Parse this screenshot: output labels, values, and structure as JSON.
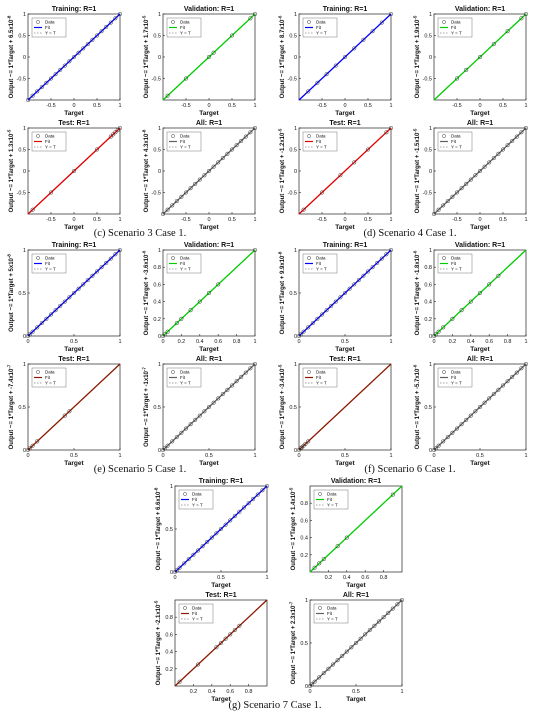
{
  "labels": {
    "data": "Data",
    "fit": "Fit",
    "ident": "Y = T",
    "target": "Target"
  },
  "captions": {
    "c": "(c) Scenario 3 Case 1.",
    "d": "(d) Scenario 4 Case 1.",
    "e": "(e) Scenario 5 Case 1.",
    "f": "(f) Scenario 6 Case 1.",
    "g": "(g) Scenario 7 Case 1."
  },
  "colors": {
    "training": "#0000ff",
    "validation": "#00cc00",
    "test_red": "#e00000",
    "test_brown": "#8b1a00",
    "all": "#606060",
    "ident": "#888888"
  },
  "chart_data": [
    {
      "id": "c-training",
      "type": "scatter",
      "title": "Training: R=1",
      "ylabel": "Output ~= 1*Target + 6.5×10^-8",
      "y_text": "Output ~= 1*Target + 6.5x10",
      "y_exp": "-8",
      "xlabel": "Target",
      "xlim": [
        -1,
        1
      ],
      "ylim": [
        -1,
        1
      ],
      "xticks": [
        -0.5,
        0,
        0.5,
        1
      ],
      "yticks": [
        -0.5,
        0,
        0.5,
        1
      ],
      "fit_color": "training",
      "points": [
        -1,
        -0.9,
        -0.8,
        -0.7,
        -0.6,
        -0.5,
        -0.4,
        -0.3,
        -0.2,
        -0.1,
        0,
        0.1,
        0.2,
        0.3,
        0.4,
        0.5,
        0.6,
        0.7,
        0.8,
        0.9,
        1
      ]
    },
    {
      "id": "c-validation",
      "type": "scatter",
      "title": "Validation: R=1",
      "ylabel": "Output ~= 1*Target + 1.7×10^-5",
      "y_text": "Output ~= 1*Target + 1.7x10",
      "y_exp": "-5",
      "xlabel": "Target",
      "xlim": [
        -1,
        1
      ],
      "ylim": [
        -1,
        1
      ],
      "xticks": [
        -0.5,
        0,
        0.5,
        1
      ],
      "yticks": [
        -0.5,
        0,
        0.5,
        1
      ],
      "fit_color": "validation",
      "points": [
        -0.9,
        -0.5,
        0,
        0.1,
        0.5,
        0.9,
        1
      ]
    },
    {
      "id": "c-test",
      "type": "scatter",
      "title": "Test: R=1",
      "ylabel": "Output ~= 1*Target + 1.3×10^-5",
      "y_text": "Output ~= 1*Target + 1.3x10",
      "y_exp": "-5",
      "xlabel": "Target",
      "xlim": [
        -1,
        1
      ],
      "ylim": [
        -1,
        1
      ],
      "xticks": [
        -0.5,
        0,
        0.5,
        1
      ],
      "yticks": [
        -0.5,
        0,
        0.5,
        1
      ],
      "fit_color": "test_red",
      "points": [
        -0.9,
        -0.5,
        0,
        0.5,
        0.8,
        0.85,
        0.9,
        0.95,
        1
      ]
    },
    {
      "id": "c-all",
      "type": "scatter",
      "title": "All: R=1",
      "ylabel": "Output ~= 1*Target + 4.3×10^-8",
      "y_text": "Output ~= 1*Target + 4.3x10",
      "y_exp": "-8",
      "xlabel": "Target",
      "xlim": [
        -1,
        1
      ],
      "ylim": [
        -1,
        1
      ],
      "xticks": [
        -0.5,
        0,
        0.5,
        1
      ],
      "yticks": [
        -0.5,
        0,
        0.5,
        1
      ],
      "fit_color": "all",
      "points": [
        -1,
        -0.9,
        -0.8,
        -0.7,
        -0.6,
        -0.5,
        -0.4,
        -0.3,
        -0.2,
        -0.1,
        0,
        0.1,
        0.2,
        0.3,
        0.4,
        0.5,
        0.6,
        0.7,
        0.8,
        0.9,
        1
      ]
    },
    {
      "id": "d-training",
      "type": "scatter",
      "title": "Training: R=1",
      "ylabel": "Output ~= 1*Target + 8.7×10^-6",
      "y_text": "Output ~= 1*Target + 8.7x10",
      "y_exp": "-6",
      "xlabel": "Target",
      "xlim": [
        -1,
        1
      ],
      "ylim": [
        -1,
        1
      ],
      "xticks": [
        -0.5,
        0,
        0.5,
        1
      ],
      "yticks": [
        -0.5,
        0,
        0.5,
        1
      ],
      "fit_color": "training",
      "points": [
        -0.8,
        -0.6,
        -0.4,
        -0.2,
        0,
        0.2,
        0.4,
        0.6,
        0.8,
        1
      ]
    },
    {
      "id": "d-validation",
      "type": "scatter",
      "title": "Validation: R=1",
      "ylabel": "Output ~= 1*Target + 1.9×10^-5",
      "y_text": "Output ~= 1*Target + 1.9x10",
      "y_exp": "-5",
      "xlabel": "Target",
      "xlim": [
        -1,
        1
      ],
      "ylim": [
        -1,
        1
      ],
      "xticks": [
        -0.5,
        0,
        0.5,
        1
      ],
      "yticks": [
        -0.5,
        0,
        0.5,
        1
      ],
      "fit_color": "validation",
      "points": [
        -0.5,
        -0.3,
        0,
        0.3,
        0.6,
        0.9,
        1
      ]
    },
    {
      "id": "d-test",
      "type": "scatter",
      "title": "Test: R=1",
      "ylabel": "Output ~= 1*Target + -1.2×10^-5",
      "y_text": "Output ~= 1*Target + -1.2x10",
      "y_exp": "-5",
      "xlabel": "Target",
      "xlim": [
        -1,
        1
      ],
      "ylim": [
        -1,
        1
      ],
      "xticks": [
        -0.5,
        0,
        0.5,
        1
      ],
      "yticks": [
        -0.5,
        0,
        0.5,
        1
      ],
      "fit_color": "test_red",
      "points": [
        -0.9,
        -0.5,
        -0.1,
        0.2,
        0.5,
        0.9,
        1
      ]
    },
    {
      "id": "d-all",
      "type": "scatter",
      "title": "All: R=1",
      "ylabel": "Output ~= 1*Target + -1.5×10^-5",
      "y_text": "Output ~= 1*Target + -1.5x10",
      "y_exp": "-5",
      "xlabel": "Target",
      "xlim": [
        -1,
        1
      ],
      "ylim": [
        -1,
        1
      ],
      "xticks": [
        -0.5,
        0,
        0.5,
        1
      ],
      "yticks": [
        -0.5,
        0,
        0.5,
        1
      ],
      "fit_color": "all",
      "points": [
        -1,
        -0.9,
        -0.8,
        -0.7,
        -0.6,
        -0.5,
        -0.4,
        -0.3,
        -0.2,
        -0.1,
        0,
        0.1,
        0.2,
        0.3,
        0.4,
        0.5,
        0.6,
        0.7,
        0.8,
        0.9,
        1
      ]
    },
    {
      "id": "e-training",
      "type": "scatter",
      "title": "Training: R=1",
      "ylabel": "Output ~= 1*Target + 5×10^-8",
      "y_text": "Output ~= 1*Target + 5x10",
      "y_exp": "-8",
      "xlabel": "Target",
      "xlim": [
        0,
        1
      ],
      "ylim": [
        0,
        1
      ],
      "xticks": [
        0,
        0.5,
        1
      ],
      "yticks": [
        0,
        0.5,
        1
      ],
      "fit_color": "training",
      "points": [
        0,
        0.02,
        0.05,
        0.1,
        0.15,
        0.2,
        0.25,
        0.3,
        0.35,
        0.4,
        0.45,
        0.5,
        0.55,
        0.6,
        0.65,
        0.7,
        0.75,
        0.8,
        0.85,
        0.9,
        0.95,
        1
      ]
    },
    {
      "id": "e-validation",
      "type": "scatter",
      "title": "Validation: R=1",
      "ylabel": "Output ~= 1*Target + -3.6×10^-6",
      "y_text": "Output ~= 1*Target + -3.6x10",
      "y_exp": "-6",
      "xlabel": "Target",
      "xlim": [
        0,
        1
      ],
      "ylim": [
        0,
        1
      ],
      "xticks": [
        0,
        0.2,
        0.4,
        0.6,
        0.8,
        1
      ],
      "yticks": [
        0,
        0.2,
        0.4,
        0.6,
        0.8,
        1
      ],
      "fit_color": "validation",
      "points": [
        0,
        0.02,
        0.05,
        0.15,
        0.2,
        0.3,
        0.4,
        0.5,
        0.6,
        1
      ]
    },
    {
      "id": "e-test",
      "type": "scatter",
      "title": "Test: R=1",
      "ylabel": "Output ~= 1*Target + -7.4×10^-7",
      "y_text": "Output ~= 1*Target + -7.4x10",
      "y_exp": "-7",
      "xlabel": "Target",
      "xlim": [
        0,
        1
      ],
      "ylim": [
        0,
        1
      ],
      "xticks": [
        0,
        0.5,
        1
      ],
      "yticks": [
        0,
        0.5,
        1
      ],
      "fit_color": "test_brown",
      "points": [
        0,
        0.02,
        0.05,
        0.1,
        0.4,
        0.45
      ]
    },
    {
      "id": "e-all",
      "type": "scatter",
      "title": "All: R=1",
      "ylabel": "Output ~= 1*Target + -1×10^-7",
      "y_text": "Output ~= 1*Target + -1x10",
      "y_exp": "-7",
      "xlabel": "Target",
      "xlim": [
        0,
        1
      ],
      "ylim": [
        0,
        1
      ],
      "xticks": [
        0,
        0.5,
        1
      ],
      "yticks": [
        0,
        0.5,
        1
      ],
      "fit_color": "all",
      "points": [
        0,
        0.02,
        0.05,
        0.1,
        0.15,
        0.2,
        0.25,
        0.3,
        0.35,
        0.4,
        0.45,
        0.5,
        0.55,
        0.6,
        0.65,
        0.7,
        0.75,
        0.8,
        0.85,
        0.9,
        0.95,
        1
      ]
    },
    {
      "id": "f-training",
      "type": "scatter",
      "title": "Training: R=1",
      "ylabel": "Output ~= 1*Target + 9.9×10^-8",
      "y_text": "Output ~= 1*Target + 9.9x10",
      "y_exp": "-8",
      "xlabel": "Target",
      "xlim": [
        0,
        1
      ],
      "ylim": [
        0,
        1
      ],
      "xticks": [
        0,
        0.5,
        1
      ],
      "yticks": [
        0,
        0.5,
        1
      ],
      "fit_color": "training",
      "points": [
        0,
        0.02,
        0.05,
        0.1,
        0.15,
        0.2,
        0.25,
        0.3,
        0.35,
        0.4,
        0.45,
        0.5,
        0.55,
        0.6,
        0.65,
        0.7,
        0.75,
        0.8,
        0.85,
        0.9,
        0.95,
        1
      ]
    },
    {
      "id": "f-validation",
      "type": "scatter",
      "title": "Validation: R=1",
      "ylabel": "Output ~= 1*Target + -1.8×10^-6",
      "y_text": "Output ~= 1*Target + -1.8x10",
      "y_exp": "-6",
      "xlabel": "Target",
      "xlim": [
        0,
        1
      ],
      "ylim": [
        0,
        1
      ],
      "xticks": [
        0,
        0.2,
        0.4,
        0.6,
        0.8,
        1
      ],
      "yticks": [
        0,
        0.2,
        0.4,
        0.6,
        0.8,
        1
      ],
      "fit_color": "validation",
      "points": [
        0,
        0.02,
        0.05,
        0.1,
        0.2,
        0.3,
        0.4,
        0.5,
        0.6,
        0.7
      ]
    },
    {
      "id": "f-test",
      "type": "scatter",
      "title": "Test: R=1",
      "ylabel": "Output ~= 1*Target + -3.4×10^-5",
      "y_text": "Output ~= 1*Target + -3.4x10",
      "y_exp": "-5",
      "xlabel": "Target",
      "xlim": [
        0,
        1
      ],
      "ylim": [
        0,
        1
      ],
      "xticks": [
        0,
        0.5,
        1
      ],
      "yticks": [
        0,
        0.5,
        1
      ],
      "fit_color": "test_brown",
      "points": [
        0,
        0.02,
        0.03,
        0.05,
        0.07,
        0.1
      ]
    },
    {
      "id": "f-all",
      "type": "scatter",
      "title": "All: R=1",
      "ylabel": "Output ~= 1*Target + -5.7×10^-6",
      "y_text": "Output ~= 1*Target + -5.7x10",
      "y_exp": "-6",
      "xlabel": "Target",
      "xlim": [
        0,
        1
      ],
      "ylim": [
        0,
        1
      ],
      "xticks": [
        0,
        0.5,
        1
      ],
      "yticks": [
        0,
        0.5,
        1
      ],
      "fit_color": "all",
      "points": [
        0,
        0.02,
        0.05,
        0.1,
        0.15,
        0.2,
        0.25,
        0.3,
        0.35,
        0.4,
        0.45,
        0.5,
        0.55,
        0.6,
        0.65,
        0.7,
        0.75,
        0.8,
        0.85,
        0.9,
        0.95,
        1
      ]
    },
    {
      "id": "g-training",
      "type": "scatter",
      "title": "Training: R=1",
      "ylabel": "Output ~= 1*Target + 6.6×10^-8",
      "y_text": "Output ~= 1*Target + 6.6x10",
      "y_exp": "-8",
      "xlabel": "Target",
      "xlim": [
        0,
        1
      ],
      "ylim": [
        0,
        1
      ],
      "xticks": [
        0,
        0.5,
        1
      ],
      "yticks": [
        0,
        0.5,
        1
      ],
      "fit_color": "training",
      "points": [
        0,
        0.02,
        0.05,
        0.1,
        0.15,
        0.2,
        0.25,
        0.3,
        0.35,
        0.4,
        0.45,
        0.5,
        0.55,
        0.6,
        0.65,
        0.7,
        0.75,
        0.8,
        0.85,
        0.9,
        0.95,
        1
      ]
    },
    {
      "id": "g-validation",
      "type": "scatter",
      "title": "Validation: R=1",
      "ylabel": "Output ~= 1*Target + 1.4×10^-5",
      "y_text": "Output ~= 1*Target + 1.4x10",
      "y_exp": "-5",
      "xlabel": "Target",
      "xlim": [
        0,
        1
      ],
      "ylim": [
        0,
        1
      ],
      "xticks": [
        0.2,
        0.4,
        0.6,
        0.8
      ],
      "yticks": [
        0.2,
        0.4,
        0.6,
        0.8
      ],
      "fit_color": "validation",
      "points": [
        0.05,
        0.1,
        0.15,
        0.3,
        0.4,
        0.9
      ]
    },
    {
      "id": "g-test",
      "type": "scatter",
      "title": "Test: R=1",
      "ylabel": "Output ~= 1*Target + -2.1×10^-5",
      "y_text": "Output ~= 1*Target + -2.1x10",
      "y_exp": "-5",
      "xlabel": "Target",
      "xlim": [
        0,
        1
      ],
      "ylim": [
        0,
        1
      ],
      "xticks": [
        0.2,
        0.4,
        0.6,
        0.8
      ],
      "yticks": [
        0.2,
        0.4,
        0.6,
        0.8
      ],
      "fit_color": "test_brown",
      "points": [
        0.05,
        0.25,
        0.45,
        0.5,
        0.55,
        0.6,
        0.65,
        0.7
      ]
    },
    {
      "id": "g-all",
      "type": "scatter",
      "title": "All: R=1",
      "ylabel": "Output ~= 1*Target + 2.3×10^-7",
      "y_text": "Output ~= 1*Target + 2.3x10",
      "y_exp": "-7",
      "xlabel": "Target",
      "xlim": [
        0,
        1
      ],
      "ylim": [
        0,
        1
      ],
      "xticks": [
        0,
        0.5,
        1
      ],
      "yticks": [
        0,
        0.5,
        1
      ],
      "fit_color": "all",
      "points": [
        0,
        0.02,
        0.05,
        0.1,
        0.15,
        0.2,
        0.25,
        0.3,
        0.35,
        0.4,
        0.45,
        0.5,
        0.55,
        0.6,
        0.65,
        0.7,
        0.75,
        0.8,
        0.85,
        0.9,
        0.95,
        1
      ]
    }
  ]
}
